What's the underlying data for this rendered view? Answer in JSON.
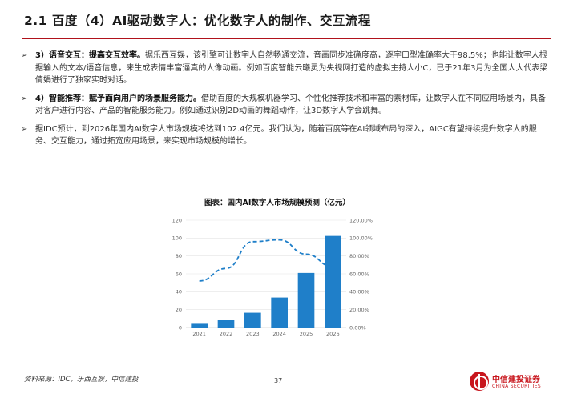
{
  "header": {
    "title": "2.1 百度（4）AI驱动数字人：优化数字人的制作、交互流程"
  },
  "bullets": [
    {
      "bold": "3）语音交互：提高交互效率。",
      "text": "据乐西互娱，该引擎可让数字人自然畅通交流，音画同步准确度高，逐字口型准确率大于98.5%；也能让数字人根据输入的文本/语音信息，来生成表情丰富逼真的人像动画。例如百度智能云曦灵为央视网打造的虚拟主持人小C，已于21年3月为全国人大代表梁倩娟进行了独家实时对话。"
    },
    {
      "bold": "4）智能推荐：赋予面向用户的场景服务能力。",
      "text": "借助百度的大规模机器学习、个性化推荐技术和丰富的素材库，让数字人在不同应用场景内，具备对客户进行内容、产品的智能服务能力。例如通过识别2D动画的舞蹈动作，让3D数字人学会跳舞。"
    },
    {
      "bold": "",
      "text": "据IDC预计，到2026年国内AI数字人市场规模将达到102.4亿元。我们认为，随着百度等在AI领域布局的深入，AIGC有望持续提升数字人的服务、交互能力，通过拓宽应用场景，来实现市场规模的增长。"
    }
  ],
  "chart_data": {
    "type": "bar",
    "title": "图表：国内AI数字人市场规模预测（亿元）",
    "categories": [
      "2021",
      "2022",
      "2023",
      "2024",
      "2025",
      "2026"
    ],
    "series": [
      {
        "type": "bar",
        "values": [
          5.0,
          8.5,
          16.5,
          33.5,
          61.0,
          102.4
        ]
      },
      {
        "type": "line",
        "axis": "right",
        "values": [
          52,
          66,
          96,
          98,
          82,
          68
        ]
      }
    ],
    "ylim": [
      0,
      120
    ],
    "y_ticks": [
      "0",
      "20",
      "40",
      "60",
      "80",
      "100",
      "120"
    ],
    "y2lim": [
      0,
      120
    ],
    "y2_ticks": [
      "0.00%",
      "20.00%",
      "40.00%",
      "60.00%",
      "80.00%",
      "100.00%",
      "120.00%"
    ],
    "grid": true,
    "colors": {
      "bar": "#1f7fc9",
      "line": "#1f7fc9"
    }
  },
  "footer": {
    "source": "资料来源：IDC，乐西互娱，中信建投",
    "page_number": "37",
    "logo_cn": "中信建投证券",
    "logo_en": "CHINA SECURITIES"
  },
  "colors": {
    "accent": "#b0121b",
    "brand": "#c8161d"
  }
}
